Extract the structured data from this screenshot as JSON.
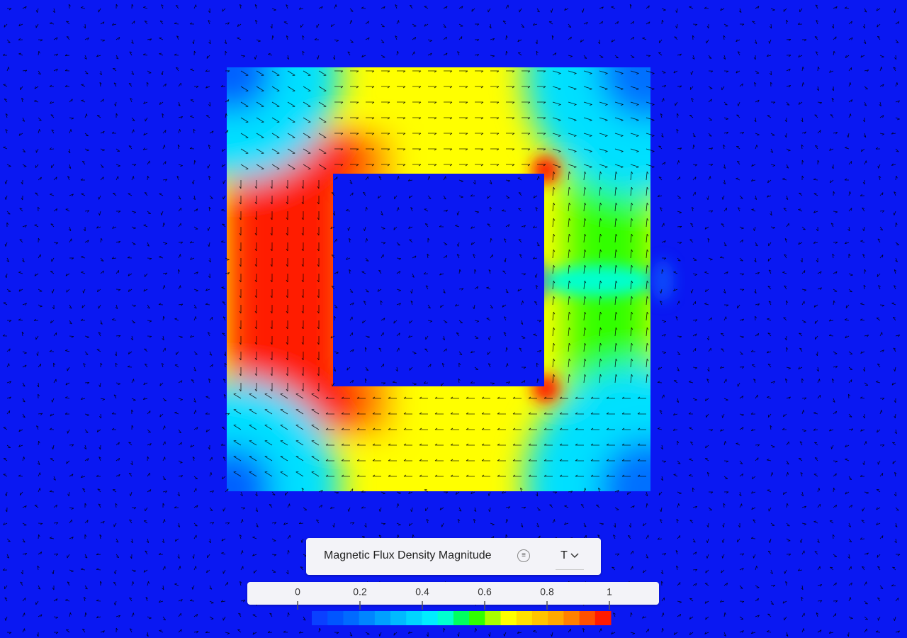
{
  "legend": {
    "title": "Magnetic Flux Density Magnitude",
    "unit": "T",
    "ticks": [
      0,
      0.2,
      0.4,
      0.6,
      0.8,
      1
    ],
    "colormap": [
      "#0a40ff",
      "#0055ff",
      "#006aff",
      "#0085ff",
      "#00a0ff",
      "#00baff",
      "#00d4ff",
      "#00ecff",
      "#00ffd0",
      "#00ff60",
      "#30ff00",
      "#a8ff00",
      "#ffff00",
      "#ffe000",
      "#ffc400",
      "#ffa800",
      "#ff8000",
      "#ff5000",
      "#ff1a00"
    ]
  }
}
